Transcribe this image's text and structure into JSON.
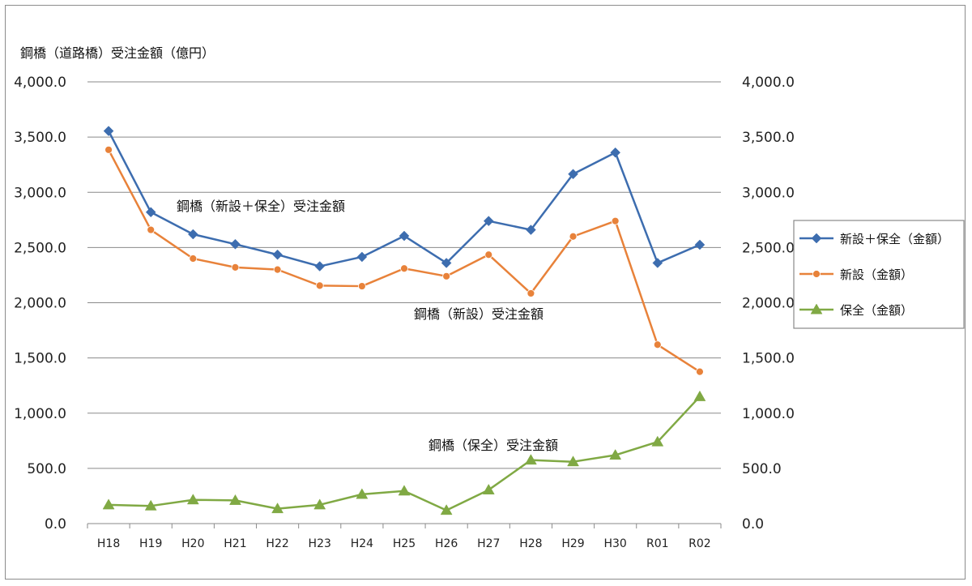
{
  "chart_data": {
    "type": "line",
    "ylabel": "鋼橋（道路橋）受注金額（億円）",
    "categories": [
      "H18",
      "H19",
      "H20",
      "H21",
      "H22",
      "H23",
      "H24",
      "H25",
      "H26",
      "H27",
      "H28",
      "H29",
      "H30",
      "R01",
      "R02"
    ],
    "ylim": [
      0,
      4000
    ],
    "ytick_labels": [
      "0.0",
      "500.0",
      "1,000.0",
      "1,500.0",
      "2,000.0",
      "2,500.0",
      "3,000.0",
      "3,500.0",
      "4,000.0"
    ],
    "grid": true,
    "legend_position": "right",
    "series": [
      {
        "name": "新設＋保全（金額）",
        "color": "#3d6daf",
        "marker": "diamond",
        "values": [
          3555,
          2820,
          2620,
          2530,
          2435,
          2330,
          2415,
          2605,
          2360,
          2740,
          2660,
          3165,
          3360,
          2360,
          2525
        ]
      },
      {
        "name": "新設（金額）",
        "color": "#e8823a",
        "marker": "circle",
        "values": [
          3385,
          2660,
          2400,
          2320,
          2300,
          2155,
          2150,
          2310,
          2240,
          2435,
          2085,
          2600,
          2740,
          1620,
          1375
        ]
      },
      {
        "name": "保全（金額）",
        "color": "#80a944",
        "marker": "triangle",
        "values": [
          170,
          160,
          215,
          210,
          135,
          170,
          265,
          295,
          120,
          305,
          575,
          560,
          620,
          740,
          1150
        ]
      }
    ],
    "annotations": [
      {
        "text": "鋼橋（新設＋保全）受注金額",
        "series": 0
      },
      {
        "text": "鋼橋（新設）受注金額",
        "series": 1
      },
      {
        "text": "鋼橋（保全）受注金額",
        "series": 2
      }
    ]
  }
}
